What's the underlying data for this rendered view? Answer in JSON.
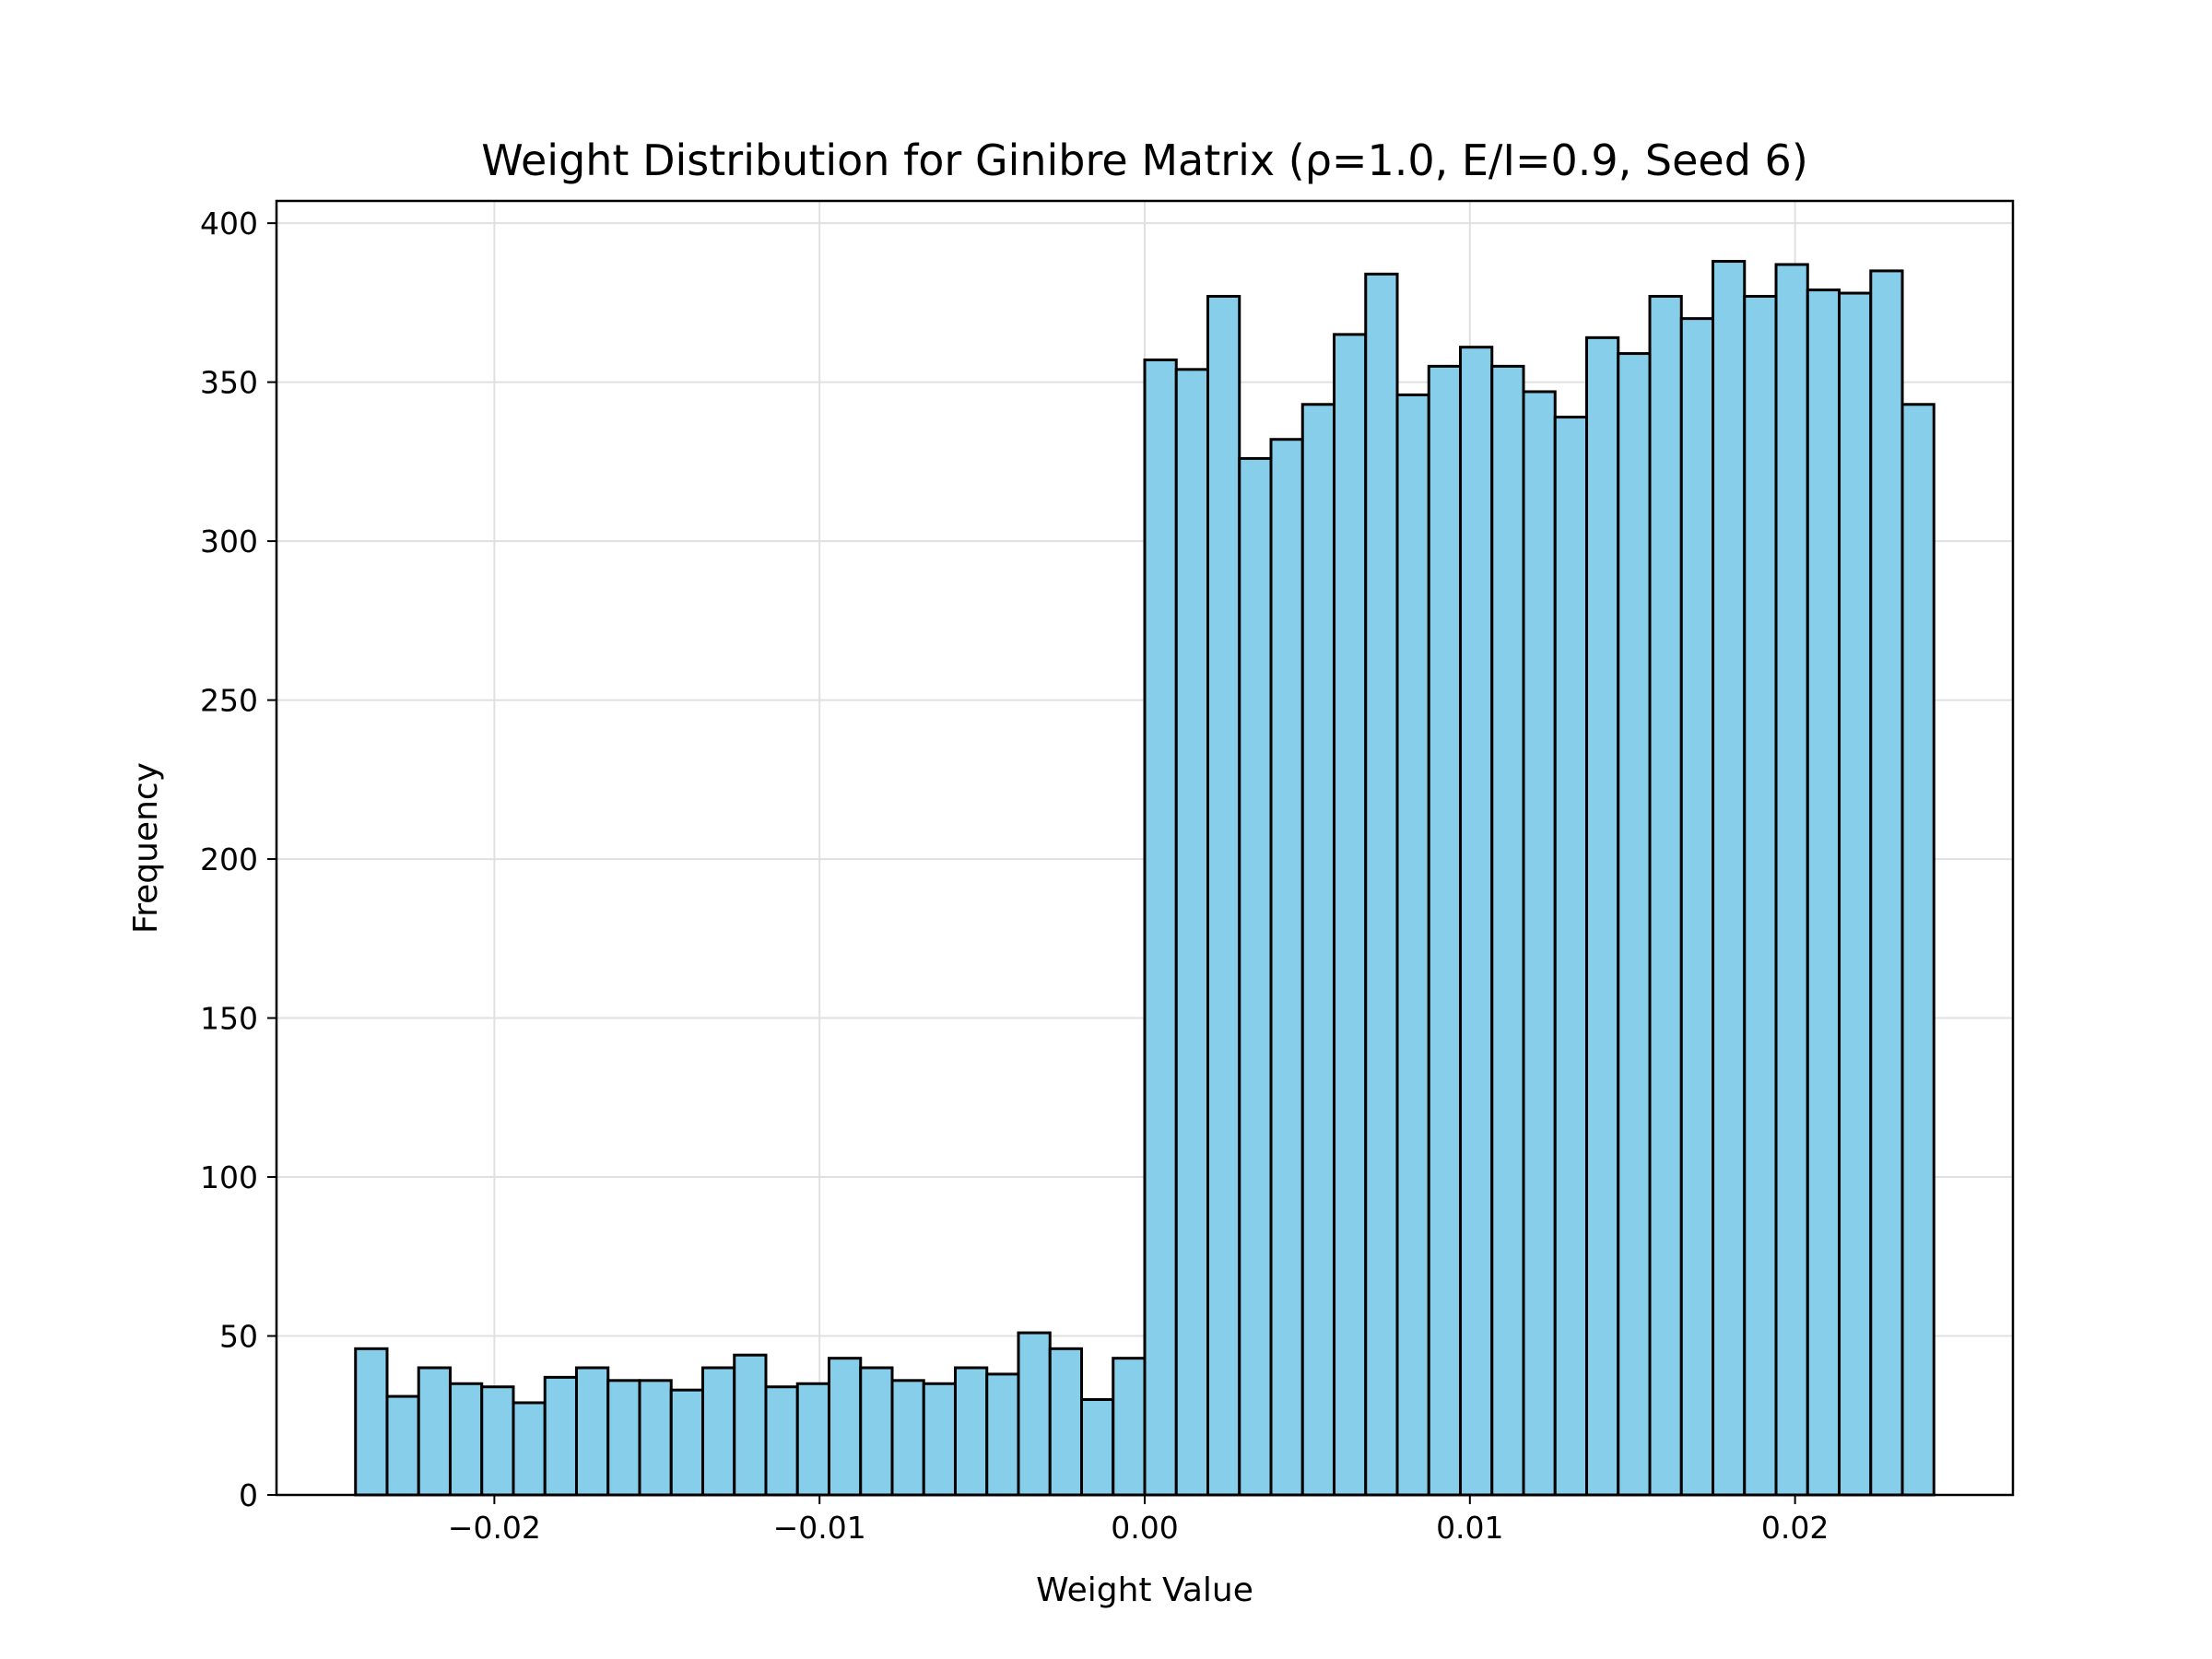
{
  "chart_data": {
    "type": "bar",
    "title": "Weight Distribution for Ginibre Matrix (ρ=1.0, E/I=0.9, Seed 6)",
    "xlabel": "Weight Value",
    "ylabel": "Frequency",
    "xlim": [
      -0.0267,
      0.0267
    ],
    "ylim": [
      0,
      407
    ],
    "x_ticks": [
      -0.02,
      -0.01,
      0.0,
      0.01,
      0.02
    ],
    "x_tick_labels": [
      "−0.02",
      "−0.01",
      "0.00",
      "0.01",
      "0.02"
    ],
    "y_ticks": [
      0,
      50,
      100,
      150,
      200,
      250,
      300,
      350,
      400
    ],
    "y_tick_labels": [
      "0",
      "50",
      "100",
      "150",
      "200",
      "250",
      "300",
      "350",
      "400"
    ],
    "grid": true,
    "bar_color": "#87ceeb",
    "edge_color": "#000000",
    "bin_range": [
      -0.02427,
      0.02427
    ],
    "values": [
      46,
      31,
      40,
      35,
      34,
      29,
      37,
      40,
      36,
      36,
      33,
      40,
      44,
      34,
      35,
      43,
      40,
      36,
      35,
      40,
      38,
      51,
      46,
      30,
      43,
      357,
      354,
      377,
      326,
      332,
      343,
      365,
      384,
      346,
      355,
      361,
      355,
      347,
      339,
      364,
      359,
      377,
      370,
      388,
      377,
      387,
      379,
      378,
      385,
      343
    ]
  }
}
